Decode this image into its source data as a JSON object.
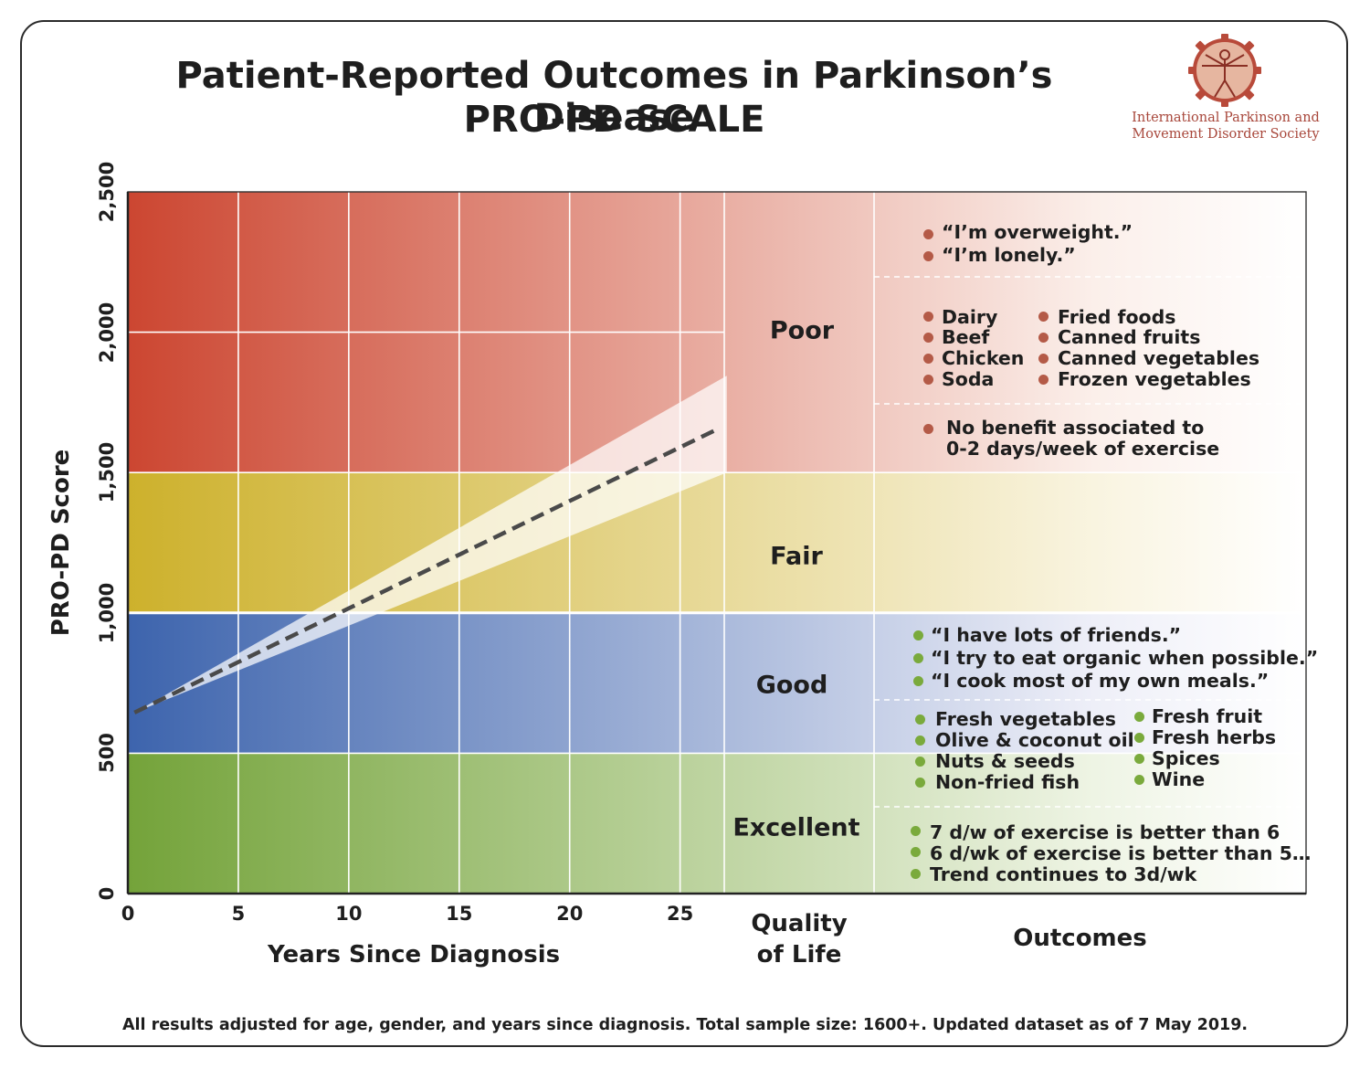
{
  "header": {
    "title_line1": "Patient-Reported Outcomes in Parkinson’s Disease",
    "title_line2": "PRO-PD SCALE"
  },
  "organization": {
    "name_line1": "International Parkinson and",
    "name_line2": "Movement Disorder Society",
    "logo_icon": "vitruvian-man-gear-icon"
  },
  "chart_data": {
    "type": "line",
    "title": "PRO-PD SCALE",
    "xlabel": "Years Since Diagnosis",
    "ylabel": "PRO-PD Score",
    "xlim": [
      0,
      27
    ],
    "ylim": [
      0,
      2500
    ],
    "x_ticks": [
      0,
      5,
      10,
      15,
      20,
      25
    ],
    "x_tick_labels": [
      "0",
      "5",
      "10",
      "15",
      "20",
      "25"
    ],
    "y_ticks": [
      0,
      500,
      1000,
      1500,
      2000,
      2500
    ],
    "y_tick_labels": [
      "0",
      "500",
      "1,000",
      "1,500",
      "2,000",
      "2,500"
    ],
    "grid": true,
    "series": [
      {
        "name": "Trend",
        "style": "dashed",
        "color": "#4a4a4a",
        "x": [
          0.3,
          26.7
        ],
        "y": [
          645,
          1655
        ],
        "band_lower": [
          645,
          1500
        ],
        "band_upper": [
          645,
          1845
        ]
      }
    ],
    "bands": [
      {
        "label": "Excellent",
        "from": 0,
        "to": 500,
        "color_start": "#74a33a",
        "color_end": "#eef4e4"
      },
      {
        "label": "Good",
        "from": 500,
        "to": 1000,
        "color_start": "#3d64ad",
        "color_end": "#eeeff8"
      },
      {
        "label": "Fair",
        "from": 1000,
        "to": 1500,
        "color_start": "#cdb12c",
        "color_end": "#f9f4e0"
      },
      {
        "label": "Poor",
        "from": 1500,
        "to": 2500,
        "color_start": "#cc4631",
        "color_end": "#fbefea"
      }
    ]
  },
  "axis_titles": {
    "quality_of_life_line1": "Quality",
    "quality_of_life_line2": "of Life",
    "outcomes": "Outcomes"
  },
  "quality_labels": {
    "poor": "Poor",
    "fair": "Fair",
    "good": "Good",
    "excellent": "Excellent"
  },
  "outcomes": {
    "poor": {
      "quotes": [
        "“I’m overweight.”",
        "“I’m lonely.”"
      ],
      "foods_left": [
        "Dairy",
        "Beef",
        "Chicken",
        "Soda"
      ],
      "foods_right": [
        "Fried foods",
        "Canned fruits",
        "Canned vegetables",
        "Frozen vegetables"
      ],
      "exercise_line1": "No benefit associated to",
      "exercise_line2": "0-2 days/week of exercise"
    },
    "good": {
      "quotes": [
        "“I have lots of friends.”",
        "“I try to eat organic when possible.”",
        "“I cook most of my own meals.”"
      ],
      "foods_left": [
        "Fresh vegetables",
        "Olive & coconut oil",
        "Nuts & seeds",
        "Non-fried fish"
      ],
      "foods_right": [
        "Fresh fruit",
        "Fresh herbs",
        "Spices",
        "Wine"
      ]
    },
    "excellent": {
      "exercise": [
        "7 d/w of exercise is better than 6",
        "6 d/wk of exercise is better than 5…",
        "Trend continues to 3d/wk"
      ]
    },
    "colors": {
      "poor_bullet": "#b45a47",
      "good_bullet": "#7aaa3c"
    }
  },
  "footnote": "All results adjusted for age, gender, and years since diagnosis. Total sample size: 1600+. Updated dataset as of 7 May 2019."
}
